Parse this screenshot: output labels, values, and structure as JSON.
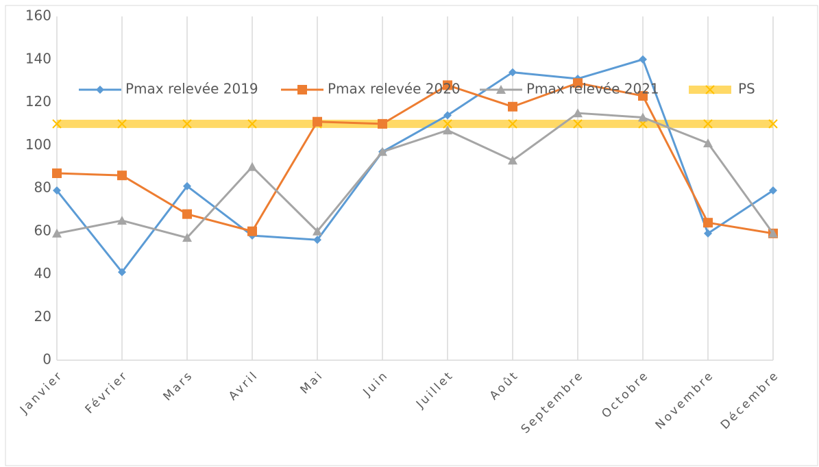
{
  "chart_data": {
    "type": "line",
    "categories": [
      "Janvier",
      "Février",
      "Mars",
      "Avril",
      "Mai",
      "Juin",
      "Juillet",
      "Août",
      "Septembre",
      "Octobre",
      "Novembre",
      "Décembre"
    ],
    "series": [
      {
        "name": "Pmax relevée 2019",
        "color": "#5b9bd5",
        "marker": "diamond",
        "values": [
          79,
          41,
          81,
          58,
          56,
          97,
          114,
          134,
          131,
          140,
          59,
          79
        ]
      },
      {
        "name": "Pmax relevée 2020",
        "color": "#ed7d31",
        "marker": "square",
        "values": [
          87,
          86,
          68,
          60,
          111,
          110,
          128,
          118,
          129,
          123,
          64,
          59
        ]
      },
      {
        "name": "Pmax relevée 2021",
        "color": "#a5a5a5",
        "marker": "triangle",
        "values": [
          59,
          65,
          57,
          90,
          60,
          97,
          107,
          93,
          115,
          113,
          101,
          59
        ]
      },
      {
        "name": "PS",
        "color": "#ffd966",
        "marker": "x",
        "marker_color": "#ffc000",
        "values": [
          110,
          110,
          110,
          110,
          110,
          110,
          110,
          110,
          110,
          110,
          110,
          110
        ]
      }
    ],
    "ylim": [
      0,
      160
    ],
    "yticks": [
      0,
      20,
      40,
      60,
      80,
      100,
      120,
      140,
      160
    ],
    "grid": "x",
    "legend": "top"
  }
}
